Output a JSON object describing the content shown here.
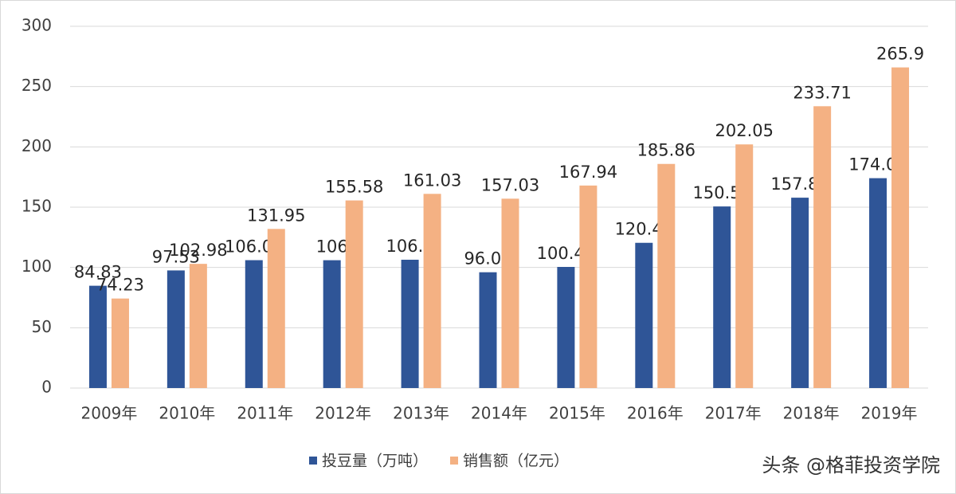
{
  "chart_data": {
    "type": "bar",
    "categories": [
      "2009年",
      "2010年",
      "2011年",
      "2012年",
      "2013年",
      "2014年",
      "2015年",
      "2016年",
      "2017年",
      "2018年",
      "2019年"
    ],
    "series": [
      {
        "name": "投豆量（万吨）",
        "color": "#2f5597",
        "values": [
          84.83,
          97.53,
          106.04,
          106,
          106.4,
          96.02,
          100.44,
          120.43,
          150.59,
          157.86,
          174.04
        ]
      },
      {
        "name": "销售额（亿元）",
        "color": "#f4b183",
        "values": [
          74.23,
          102.98,
          131.95,
          155.58,
          161.03,
          157.03,
          167.94,
          185.86,
          202.05,
          233.71,
          265.9
        ]
      }
    ],
    "ylim": [
      0,
      300
    ],
    "yticks": [
      0,
      50,
      100,
      150,
      200,
      250,
      300
    ],
    "grid": true,
    "legend": "bottom",
    "watermark": "头条 @格菲投资学院"
  }
}
